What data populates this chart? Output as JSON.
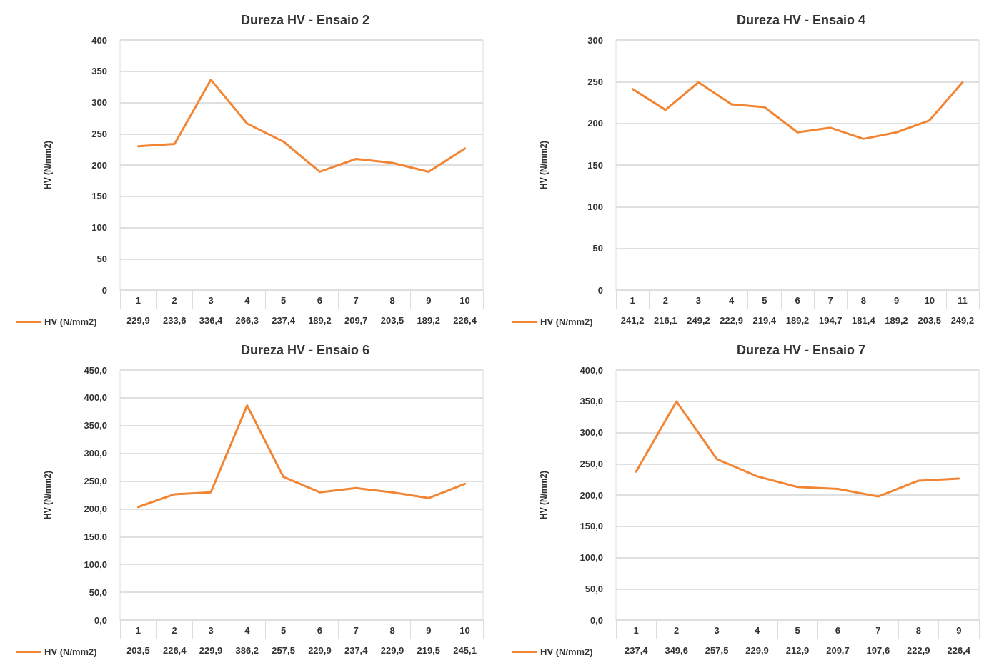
{
  "chart_data": [
    {
      "type": "line",
      "title": "Dureza HV - Ensaio 2",
      "ylabel": "HV (N/mm2)",
      "categories": [
        "1",
        "2",
        "3",
        "4",
        "5",
        "6",
        "7",
        "8",
        "9",
        "10"
      ],
      "ylim": [
        0,
        400
      ],
      "yticks": [
        0,
        50,
        100,
        150,
        200,
        250,
        300,
        350,
        400
      ],
      "grid": "y",
      "legend": "bottom left",
      "marker": "none",
      "series": [
        {
          "name": "HV (N/mm2)",
          "color": "#f28534",
          "values": [
            229.9,
            233.6,
            336.4,
            266.3,
            237.4,
            189.2,
            209.7,
            203.5,
            189.2,
            226.4
          ],
          "value_labels": [
            "229,9",
            "233,6",
            "336,4",
            "266,3",
            "237,4",
            "189,2",
            "209,7",
            "203,5",
            "189,2",
            "226,4"
          ]
        }
      ]
    },
    {
      "type": "line",
      "title": "Dureza HV - Ensaio 4",
      "ylabel": "HV (N/mm2)",
      "categories": [
        "1",
        "2",
        "3",
        "4",
        "5",
        "6",
        "7",
        "8",
        "9",
        "10",
        "11"
      ],
      "ylim": [
        0,
        300
      ],
      "yticks": [
        0,
        50,
        100,
        150,
        200,
        250,
        300
      ],
      "grid": "y",
      "legend": "bottom left",
      "marker": "none",
      "series": [
        {
          "name": "HV (N/mm2)",
          "color": "#f28534",
          "values": [
            241.2,
            216.1,
            249.2,
            222.9,
            219.4,
            189.2,
            194.7,
            181.4,
            189.2,
            203.5,
            249.2
          ],
          "value_labels": [
            "241,2",
            "216,1",
            "249,2",
            "222,9",
            "219,4",
            "189,2",
            "194,7",
            "181,4",
            "189,2",
            "203,5",
            "249,2"
          ]
        }
      ]
    },
    {
      "type": "line",
      "title": "Dureza HV - Ensaio 6",
      "ylabel": "HV (N/mm2)",
      "categories": [
        "1",
        "2",
        "3",
        "4",
        "5",
        "6",
        "7",
        "8",
        "9",
        "10"
      ],
      "ylim": [
        0,
        450
      ],
      "yticks": [
        {
          "value": 0,
          "label": "0,0"
        },
        {
          "value": 50,
          "label": "50,0"
        },
        {
          "value": 100,
          "label": "100,0"
        },
        {
          "value": 150,
          "label": "150,0"
        },
        {
          "value": 200,
          "label": "200,0"
        },
        {
          "value": 250,
          "label": "250,0"
        },
        {
          "value": 300,
          "label": "300,0"
        },
        {
          "value": 350,
          "label": "350,0"
        },
        {
          "value": 400,
          "label": "400,0"
        },
        {
          "value": 450,
          "label": "450,0"
        }
      ],
      "grid": "y",
      "legend": "bottom left",
      "marker": "none",
      "series": [
        {
          "name": "HV (N/mm2)",
          "color": "#f28534",
          "values": [
            203.5,
            226.4,
            229.9,
            386.2,
            257.5,
            229.9,
            237.4,
            229.9,
            219.5,
            245.1
          ],
          "value_labels": [
            "203,5",
            "226,4",
            "229,9",
            "386,2",
            "257,5",
            "229,9",
            "237,4",
            "229,9",
            "219,5",
            "245,1"
          ]
        }
      ]
    },
    {
      "type": "line",
      "title": "Dureza HV - Ensaio 7",
      "ylabel": "HV (N/mm2)",
      "categories": [
        "1",
        "2",
        "3",
        "4",
        "5",
        "6",
        "7",
        "8",
        "9"
      ],
      "ylim": [
        0,
        400
      ],
      "yticks": [
        {
          "value": 0,
          "label": "0,0"
        },
        {
          "value": 50,
          "label": "50,0"
        },
        {
          "value": 100,
          "label": "100,0"
        },
        {
          "value": 150,
          "label": "150,0"
        },
        {
          "value": 200,
          "label": "200,0"
        },
        {
          "value": 250,
          "label": "250,0"
        },
        {
          "value": 300,
          "label": "300,0"
        },
        {
          "value": 350,
          "label": "350,0"
        },
        {
          "value": 400,
          "label": "400,0"
        }
      ],
      "grid": "y",
      "legend": "bottom left",
      "marker": "none",
      "series": [
        {
          "name": "HV (N/mm2)",
          "color": "#f28534",
          "values": [
            237.4,
            349.6,
            257.5,
            229.9,
            212.9,
            209.7,
            197.6,
            222.9,
            226.4
          ],
          "value_labels": [
            "237,4",
            "349,6",
            "257,5",
            "229,9",
            "212,9",
            "209,7",
            "197,6",
            "222,9",
            "226,4"
          ]
        }
      ]
    }
  ]
}
